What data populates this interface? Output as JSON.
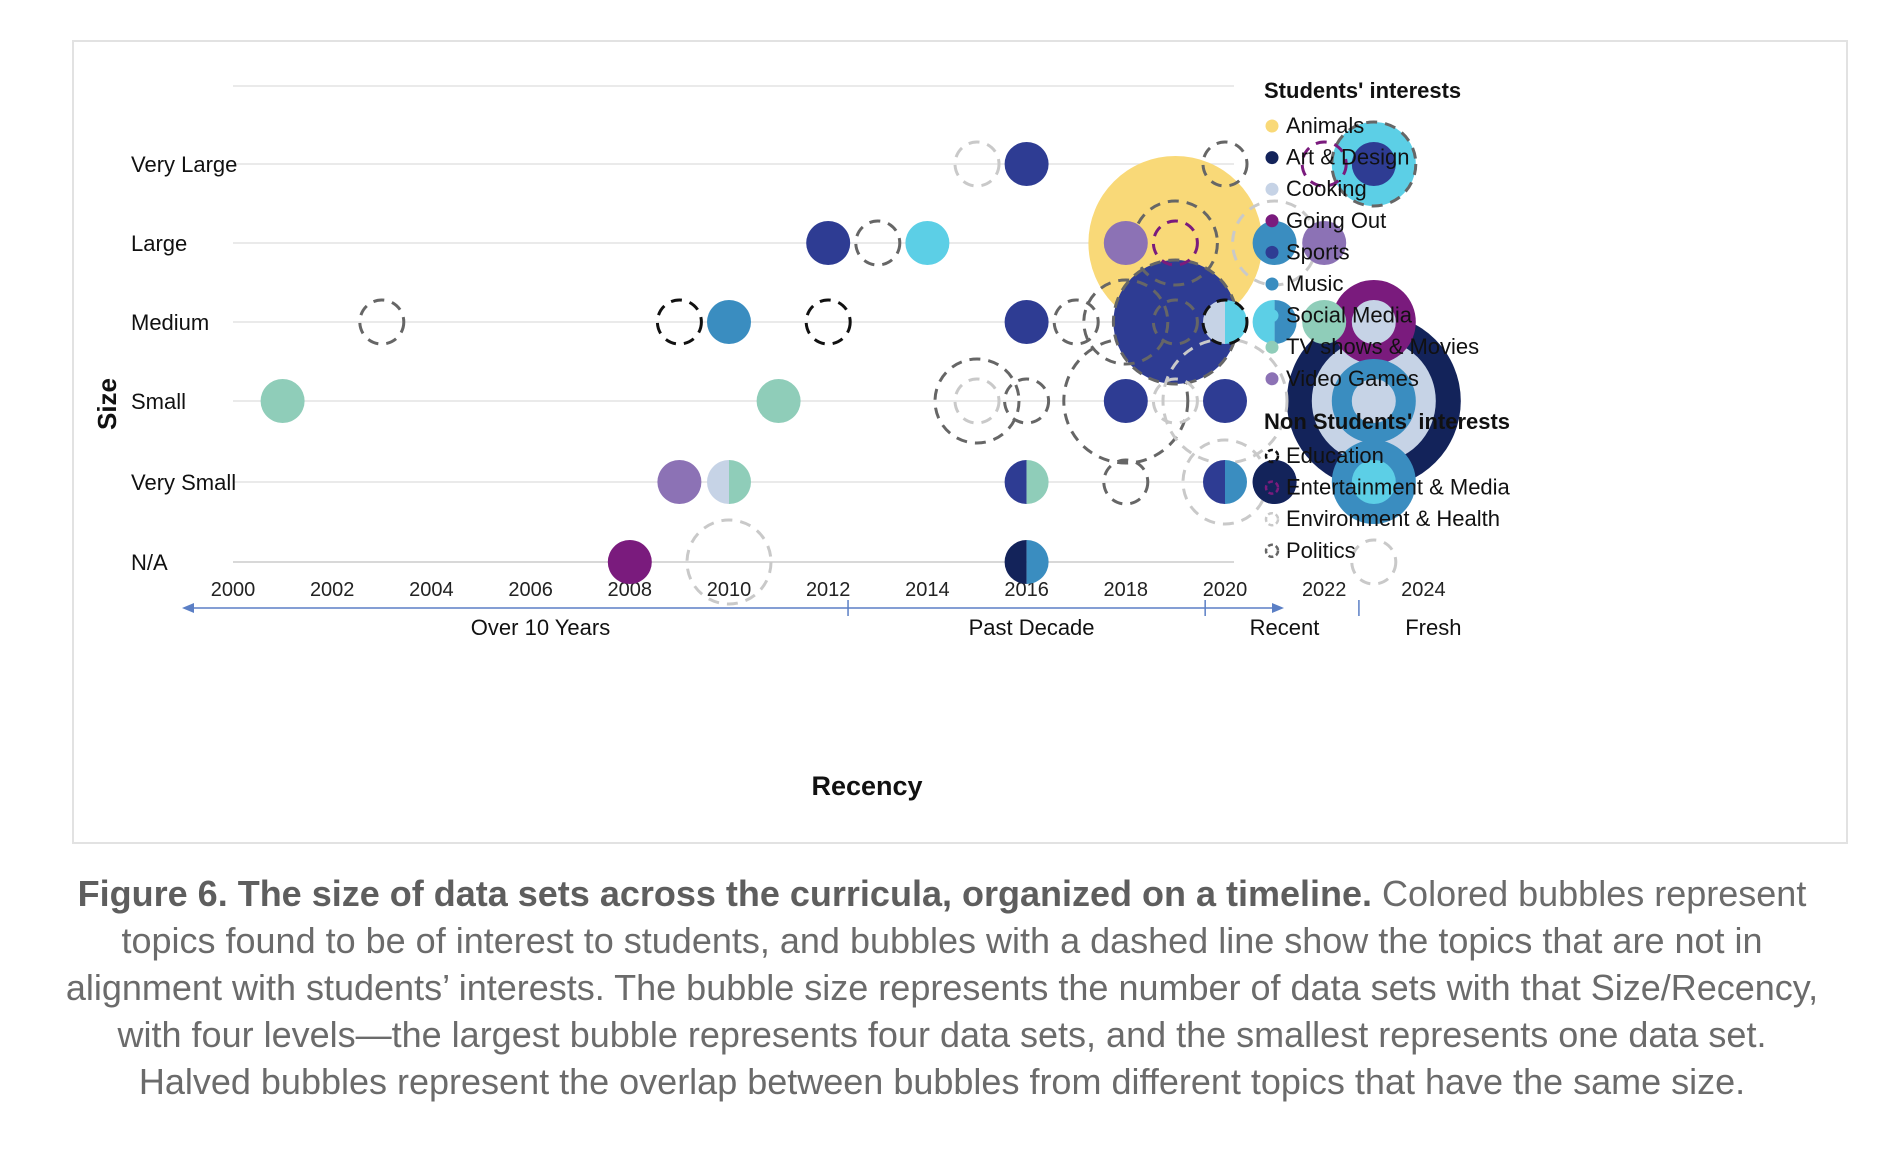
{
  "chart_data": {
    "type": "scatter",
    "xlabel": "Recency",
    "ylabel": "Size",
    "xlim": [
      2000,
      2025
    ],
    "x_ticks": [
      2000,
      2002,
      2004,
      2006,
      2008,
      2010,
      2012,
      2014,
      2016,
      2018,
      2020,
      2022,
      2024
    ],
    "y_categories": [
      "Very Large",
      "Large",
      "Medium",
      "Small",
      "Very Small",
      "N/A"
    ],
    "recency_bands": [
      "Over 10 Years",
      "Past Decade",
      "Recent",
      "Fresh"
    ],
    "grid": true,
    "legend_position": "right",
    "legend": {
      "students_title": "Students' interests",
      "students": [
        {
          "name": "Animals",
          "color": "#F9D978"
        },
        {
          "name": "Art & Design",
          "color": "#13235A"
        },
        {
          "name": "Cooking",
          "color": "#C6D3E6"
        },
        {
          "name": "Going Out",
          "color": "#7A1B7D"
        },
        {
          "name": "Sports",
          "color": "#2E3C93"
        },
        {
          "name": "Music",
          "color": "#3A8DC0"
        },
        {
          "name": "Social Media",
          "color": "#5CCFE6"
        },
        {
          "name": "TV shows & Movies",
          "color": "#8FCDB9"
        },
        {
          "name": "Video Games",
          "color": "#8C72B5"
        }
      ],
      "non_students_title": "Non Students' interests",
      "non_students": [
        {
          "name": "Education",
          "color": "#111111"
        },
        {
          "name": "Entertainment & Media",
          "color": "#7A1B7D"
        },
        {
          "name": "Environment & Health",
          "color": "#C9C9C9"
        },
        {
          "name": "Politics",
          "color": "#666666"
        }
      ]
    },
    "points": [
      {
        "x": 2001,
        "y": "Small",
        "topic": "TV shows & Movies",
        "count": 1
      },
      {
        "x": 2003,
        "y": "Medium",
        "topic": "Politics",
        "count": 1
      },
      {
        "x": 2008,
        "y": "N/A",
        "topic": "Going Out",
        "count": 1
      },
      {
        "x": 2009,
        "y": "Medium",
        "topic": "Education",
        "count": 1
      },
      {
        "x": 2009,
        "y": "Very Small",
        "topic": "Video Games",
        "count": 1
      },
      {
        "x": 2010,
        "y": "Medium",
        "topic": "Music",
        "count": 1
      },
      {
        "x": 2010,
        "y": "Very Small",
        "topic": "Cooking",
        "topic2": "TV shows & Movies",
        "count": 1
      },
      {
        "x": 2010,
        "y": "N/A",
        "topic": "Environment & Health",
        "count": 2
      },
      {
        "x": 2011,
        "y": "Small",
        "topic": "TV shows & Movies",
        "count": 1
      },
      {
        "x": 2012,
        "y": "Large",
        "topic": "Sports",
        "count": 1
      },
      {
        "x": 2012,
        "y": "Medium",
        "topic": "Education",
        "count": 1
      },
      {
        "x": 2013,
        "y": "Large",
        "topic": "Politics",
        "count": 1
      },
      {
        "x": 2014,
        "y": "Large",
        "topic": "Social Media",
        "count": 1
      },
      {
        "x": 2015,
        "y": "Very Large",
        "topic": "Environment & Health",
        "count": 1
      },
      {
        "x": 2015,
        "y": "Small",
        "topic": "Politics",
        "count": 2
      },
      {
        "x": 2015,
        "y": "Small",
        "topic": "Environment & Health",
        "count": 1
      },
      {
        "x": 2016,
        "y": "Very Large",
        "topic": "Sports",
        "count": 1
      },
      {
        "x": 2016,
        "y": "Medium",
        "topic": "Sports",
        "count": 1
      },
      {
        "x": 2016,
        "y": "Small",
        "topic": "Politics",
        "count": 1
      },
      {
        "x": 2016,
        "y": "Very Small",
        "topic": "Sports",
        "topic2": "TV shows & Movies",
        "count": 1
      },
      {
        "x": 2016,
        "y": "N/A",
        "topic": "Art & Design",
        "topic2": "Music",
        "count": 1
      },
      {
        "x": 2017,
        "y": "Medium",
        "topic": "Politics",
        "count": 1
      },
      {
        "x": 2018,
        "y": "Medium",
        "topic": "Politics",
        "count": 2
      },
      {
        "x": 2018,
        "y": "Small",
        "topic": "Politics",
        "count": 3
      },
      {
        "x": 2018,
        "y": "Small",
        "topic": "Sports",
        "count": 1
      },
      {
        "x": 2018,
        "y": "Very Small",
        "topic": "Politics",
        "count": 1
      },
      {
        "x": 2018,
        "y": "Large",
        "topic": "Video Games",
        "count": 1
      },
      {
        "x": 2019,
        "y": "Large",
        "topic": "Animals",
        "count": 4
      },
      {
        "x": 2019,
        "y": "Large",
        "topic": "Politics",
        "count": 2
      },
      {
        "x": 2019,
        "y": "Large",
        "topic": "Entertainment & Media",
        "count": 1
      },
      {
        "x": 2019,
        "y": "Medium",
        "topic": "Sports",
        "count": 3
      },
      {
        "x": 2019,
        "y": "Medium",
        "topic": "Politics",
        "count": 3
      },
      {
        "x": 2019,
        "y": "Medium",
        "topic": "Politics",
        "count": 1
      },
      {
        "x": 2019,
        "y": "Small",
        "topic": "Environment & Health",
        "count": 1
      },
      {
        "x": 2020,
        "y": "Very Large",
        "topic": "Politics",
        "count": 1
      },
      {
        "x": 2020,
        "y": "Medium",
        "topic": "Cooking",
        "topic2": "Social Media",
        "count": 1
      },
      {
        "x": 2020,
        "y": "Medium",
        "topic": "Education",
        "count": 1
      },
      {
        "x": 2020,
        "y": "Small",
        "topic": "Sports",
        "count": 1
      },
      {
        "x": 2020,
        "y": "Small",
        "topic": "Environment & Health",
        "count": 3
      },
      {
        "x": 2020,
        "y": "Very Small",
        "topic": "Sports",
        "topic2": "Music",
        "count": 1
      },
      {
        "x": 2020,
        "y": "Very Small",
        "topic": "Environment & Health",
        "count": 2
      },
      {
        "x": 2021,
        "y": "Large",
        "topic": "Environment & Health",
        "count": 2
      },
      {
        "x": 2021,
        "y": "Large",
        "topic": "Music",
        "count": 1
      },
      {
        "x": 2021,
        "y": "Medium",
        "topic": "Social Media",
        "topic2": "Music",
        "count": 1
      },
      {
        "x": 2021,
        "y": "Very Small",
        "topic": "Sports",
        "count": 1
      },
      {
        "x": 2021,
        "y": "Very Small",
        "topic": "Art & Design",
        "count": 1
      },
      {
        "x": 2022,
        "y": "Very Large",
        "topic": "Entertainment & Media",
        "count": 1
      },
      {
        "x": 2022,
        "y": "Large",
        "topic": "Video Games",
        "count": 1
      },
      {
        "x": 2022,
        "y": "Medium",
        "topic": "TV shows & Movies",
        "count": 1
      },
      {
        "x": 2023,
        "y": "Very Large",
        "topic": "Social Media",
        "count": 2
      },
      {
        "x": 2023,
        "y": "Very Large",
        "topic": "Politics",
        "count": 2
      },
      {
        "x": 2023,
        "y": "Very Large",
        "topic": "Sports",
        "count": 1
      },
      {
        "x": 2023,
        "y": "Medium",
        "topic": "Going Out",
        "count": 2
      },
      {
        "x": 2023,
        "y": "Medium",
        "topic": "Cooking",
        "count": 1
      },
      {
        "x": 2023,
        "y": "Small",
        "topic": "Art & Design",
        "count": 4
      },
      {
        "x": 2023,
        "y": "Small",
        "topic": "Cooking",
        "count": 3
      },
      {
        "x": 2023,
        "y": "Small",
        "topic": "Music",
        "count": 2
      },
      {
        "x": 2023,
        "y": "Small",
        "topic": "Cooking",
        "count": 1
      },
      {
        "x": 2023,
        "y": "Very Small",
        "topic": "Music",
        "count": 2
      },
      {
        "x": 2023,
        "y": "Very Small",
        "topic": "Social Media",
        "count": 1
      },
      {
        "x": 2023,
        "y": "N/A",
        "topic": "Environment & Health",
        "count": 1
      }
    ]
  },
  "caption": {
    "bold": "Figure 6. The size of data sets across the curricula, organized on a timeline.",
    "text": " Colored bubbles represent topics found to be of interest to students, and bubbles with a dashed line show the topics that are not in alignment with students’ interests. The bubble size represents the number of data sets with that Size/Recency, with four levels—the largest bubble represents four data sets, and the smallest represents one data set. Halved bubbles represent the overlap between bubbles from different topics that have the same size."
  }
}
